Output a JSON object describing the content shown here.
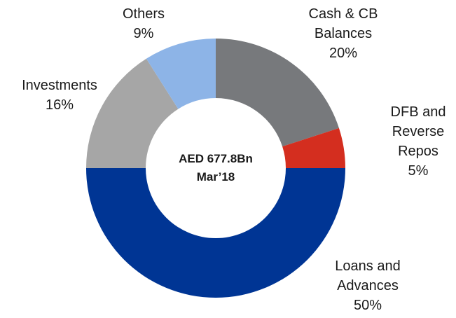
{
  "chart_data": {
    "type": "donut",
    "categories": [
      "Cash & CB Balances",
      "DFB and Reverse Repos",
      "Loans and Advances",
      "Investments",
      "Others"
    ],
    "values": [
      20,
      5,
      50,
      16,
      9
    ],
    "value_labels": [
      "20%",
      "5%",
      "50%",
      "16%",
      "9%"
    ],
    "colors": [
      "#77797c",
      "#d42e1f",
      "#003594",
      "#a6a6a6",
      "#8db4e7"
    ],
    "center_text": [
      "AED 677.8Bn",
      "Mar’18"
    ]
  }
}
